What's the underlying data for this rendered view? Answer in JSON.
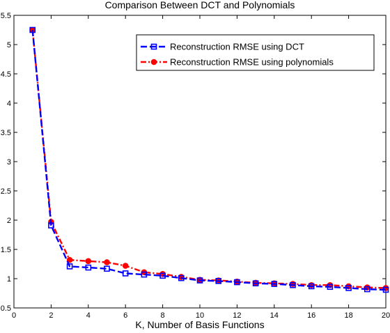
{
  "chart_data": {
    "type": "line",
    "title": "Comparison Between DCT and Polynomials",
    "xlabel": "K, Number of Basis Functions",
    "ylabel": "",
    "xlim": [
      0,
      20
    ],
    "ylim": [
      0.5,
      5.5
    ],
    "xticks": [
      0,
      2,
      4,
      6,
      8,
      10,
      12,
      14,
      16,
      18,
      20
    ],
    "yticks": [
      0.5,
      1,
      1.5,
      2,
      2.5,
      3,
      3.5,
      4,
      4.5,
      5,
      5.5
    ],
    "xtick_labels": [
      "0",
      "2",
      "4",
      "6",
      "8",
      "10",
      "12",
      "14",
      "16",
      "18",
      "20"
    ],
    "ytick_labels": [
      "0.5",
      "1",
      "1.5",
      "2",
      "2.5",
      "3",
      "3.5",
      "4",
      "4.5",
      "5",
      "5.5"
    ],
    "grid": false,
    "legend_position": "top-right",
    "x": [
      1,
      2,
      3,
      4,
      5,
      6,
      7,
      8,
      9,
      10,
      11,
      12,
      13,
      14,
      15,
      16,
      17,
      18,
      19,
      20
    ],
    "series": [
      {
        "name": "Reconstruction RMSE using DCT",
        "color": "#0000ff",
        "marker": "square",
        "line_style": "dashed",
        "values": [
          5.25,
          1.91,
          1.21,
          1.19,
          1.17,
          1.09,
          1.07,
          1.05,
          1.01,
          0.97,
          0.96,
          0.94,
          0.92,
          0.91,
          0.89,
          0.87,
          0.86,
          0.84,
          0.82,
          0.81
        ]
      },
      {
        "name": "Reconstruction RMSE using polynomials",
        "color": "#ff0000",
        "marker": "circle",
        "line_style": "dash-dot",
        "values": [
          5.25,
          1.97,
          1.32,
          1.3,
          1.28,
          1.22,
          1.11,
          1.08,
          1.03,
          0.98,
          0.97,
          0.95,
          0.93,
          0.92,
          0.91,
          0.89,
          0.89,
          0.87,
          0.85,
          0.84
        ]
      }
    ]
  }
}
